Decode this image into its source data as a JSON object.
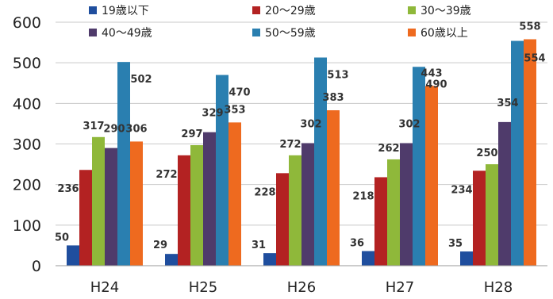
{
  "chart_data": {
    "type": "bar",
    "categories": [
      "H24",
      "H25",
      "H26",
      "H27",
      "H28"
    ],
    "series": [
      {
        "name": "19歳以下",
        "color": "#1f4e9e",
        "values": [
          50,
          29,
          31,
          36,
          35
        ]
      },
      {
        "name": "20〜29歳",
        "color": "#b32222",
        "values": [
          236,
          272,
          228,
          218,
          234
        ]
      },
      {
        "name": "30〜39歳",
        "color": "#8fb83a",
        "values": [
          317,
          297,
          272,
          262,
          250
        ]
      },
      {
        "name": "40〜49歳",
        "color": "#4f3b6b",
        "values": [
          290,
          329,
          302,
          302,
          354
        ]
      },
      {
        "name": "50〜59歳",
        "color": "#2a7fb0",
        "values": [
          502,
          470,
          513,
          490,
          554
        ]
      },
      {
        "name": "60歳以上",
        "color": "#ee6a1f",
        "values": [
          306,
          353,
          383,
          443,
          558
        ]
      }
    ],
    "ylim": [
      0,
      600
    ],
    "yticks": [
      0,
      100,
      200,
      300,
      400,
      500,
      600
    ],
    "grid": true,
    "legend_position": "top"
  }
}
